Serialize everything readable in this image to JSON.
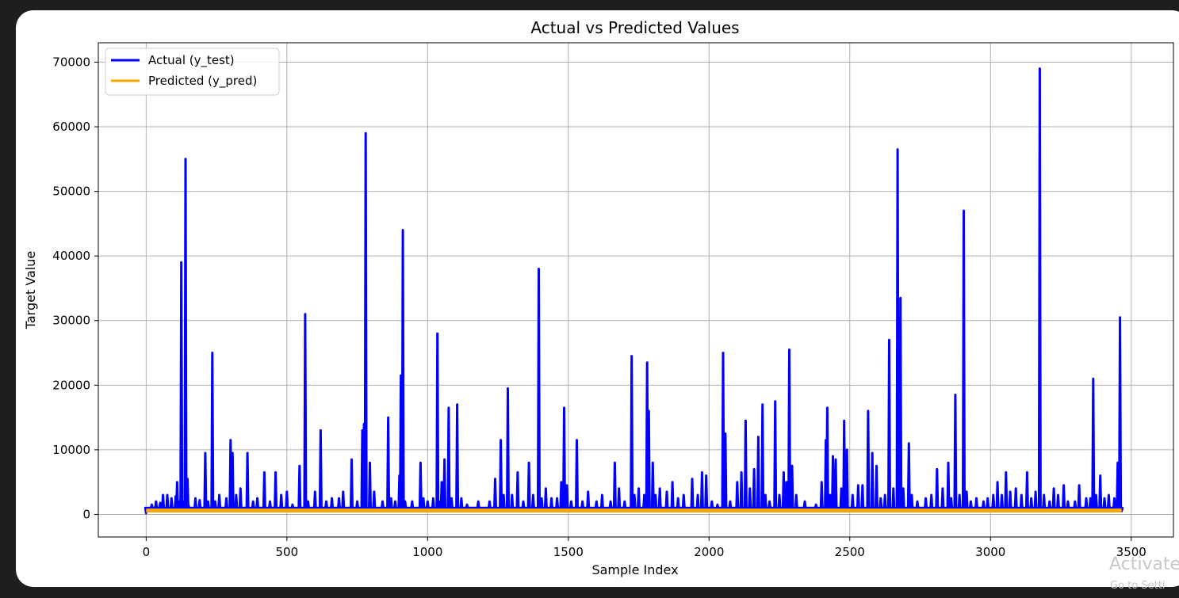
{
  "overlay": {
    "activate_text": "Activate",
    "settings_text": "Go to Setti"
  },
  "chart_data": {
    "type": "line",
    "title": "Actual vs Predicted Values",
    "xlabel": "Sample Index",
    "ylabel": "Target Value",
    "xlim": [
      -170,
      3650
    ],
    "ylim": [
      -3500,
      73000
    ],
    "xticks": [
      0,
      500,
      1000,
      1500,
      2000,
      2500,
      3000,
      3500
    ],
    "yticks": [
      0,
      10000,
      20000,
      30000,
      40000,
      50000,
      60000,
      70000
    ],
    "grid": true,
    "legend_position": "top-left",
    "colors": {
      "actual": "#0000ff",
      "predicted": "#ffa500"
    },
    "series": [
      {
        "name": "Actual (y_test)",
        "color": "#0000ff",
        "baseline": 1000,
        "n": 3466,
        "peaks": [
          [
            0,
            200
          ],
          [
            20,
            1500
          ],
          [
            35,
            2000
          ],
          [
            50,
            1800
          ],
          [
            60,
            3000
          ],
          [
            75,
            3000
          ],
          [
            90,
            2500
          ],
          [
            105,
            2800
          ],
          [
            110,
            5000
          ],
          [
            118,
            2000
          ],
          [
            125,
            39000
          ],
          [
            130,
            2000
          ],
          [
            140,
            55000
          ],
          [
            147,
            5500
          ],
          [
            150,
            1500
          ],
          [
            175,
            2500
          ],
          [
            190,
            2200
          ],
          [
            210,
            9500
          ],
          [
            220,
            2000
          ],
          [
            235,
            25000
          ],
          [
            245,
            2000
          ],
          [
            260,
            3000
          ],
          [
            285,
            2500
          ],
          [
            300,
            11500
          ],
          [
            307,
            9500
          ],
          [
            320,
            3000
          ],
          [
            335,
            4000
          ],
          [
            360,
            9500
          ],
          [
            380,
            2000
          ],
          [
            395,
            2500
          ],
          [
            420,
            6500
          ],
          [
            440,
            2000
          ],
          [
            460,
            6500
          ],
          [
            480,
            3000
          ],
          [
            500,
            3500
          ],
          [
            520,
            1500
          ],
          [
            545,
            7500
          ],
          [
            565,
            31000
          ],
          [
            575,
            2000
          ],
          [
            600,
            3500
          ],
          [
            620,
            13000
          ],
          [
            640,
            2000
          ],
          [
            660,
            2500
          ],
          [
            685,
            2500
          ],
          [
            700,
            3500
          ],
          [
            730,
            8500
          ],
          [
            750,
            2000
          ],
          [
            768,
            13000
          ],
          [
            774,
            14000
          ],
          [
            780,
            59000
          ],
          [
            795,
            8000
          ],
          [
            810,
            3500
          ],
          [
            840,
            2000
          ],
          [
            860,
            15000
          ],
          [
            870,
            2500
          ],
          [
            885,
            2000
          ],
          [
            900,
            6000
          ],
          [
            905,
            21500
          ],
          [
            912,
            44000
          ],
          [
            920,
            2000
          ],
          [
            945,
            2000
          ],
          [
            975,
            8000
          ],
          [
            985,
            2500
          ],
          [
            1000,
            2000
          ],
          [
            1020,
            2500
          ],
          [
            1035,
            28000
          ],
          [
            1040,
            2000
          ],
          [
            1050,
            5000
          ],
          [
            1060,
            8500
          ],
          [
            1075,
            16500
          ],
          [
            1085,
            2500
          ],
          [
            1105,
            17000
          ],
          [
            1120,
            2500
          ],
          [
            1140,
            1500
          ],
          [
            1180,
            2000
          ],
          [
            1220,
            2000
          ],
          [
            1240,
            5500
          ],
          [
            1260,
            11500
          ],
          [
            1270,
            3000
          ],
          [
            1285,
            19500
          ],
          [
            1300,
            3000
          ],
          [
            1320,
            6500
          ],
          [
            1340,
            2000
          ],
          [
            1360,
            8000
          ],
          [
            1375,
            3000
          ],
          [
            1395,
            38000
          ],
          [
            1405,
            2500
          ],
          [
            1420,
            4000
          ],
          [
            1440,
            2500
          ],
          [
            1460,
            2500
          ],
          [
            1475,
            5000
          ],
          [
            1485,
            16500
          ],
          [
            1495,
            4500
          ],
          [
            1510,
            2000
          ],
          [
            1530,
            11500
          ],
          [
            1550,
            2000
          ],
          [
            1570,
            3500
          ],
          [
            1600,
            2000
          ],
          [
            1620,
            3000
          ],
          [
            1650,
            2000
          ],
          [
            1665,
            8000
          ],
          [
            1680,
            4000
          ],
          [
            1700,
            2000
          ],
          [
            1725,
            24500
          ],
          [
            1735,
            3000
          ],
          [
            1750,
            4000
          ],
          [
            1770,
            3000
          ],
          [
            1780,
            23500
          ],
          [
            1786,
            16000
          ],
          [
            1800,
            8000
          ],
          [
            1810,
            3000
          ],
          [
            1825,
            4000
          ],
          [
            1850,
            3500
          ],
          [
            1870,
            5000
          ],
          [
            1890,
            2500
          ],
          [
            1910,
            3000
          ],
          [
            1940,
            5500
          ],
          [
            1960,
            3000
          ],
          [
            1975,
            6500
          ],
          [
            1990,
            6000
          ],
          [
            2010,
            2000
          ],
          [
            2030,
            1500
          ],
          [
            2050,
            25000
          ],
          [
            2058,
            12500
          ],
          [
            2075,
            2000
          ],
          [
            2100,
            5000
          ],
          [
            2115,
            6500
          ],
          [
            2130,
            14500
          ],
          [
            2145,
            4000
          ],
          [
            2160,
            7000
          ],
          [
            2175,
            12000
          ],
          [
            2190,
            17000
          ],
          [
            2200,
            3000
          ],
          [
            2215,
            2000
          ],
          [
            2235,
            17500
          ],
          [
            2250,
            3000
          ],
          [
            2265,
            6500
          ],
          [
            2275,
            5000
          ],
          [
            2285,
            25500
          ],
          [
            2295,
            7500
          ],
          [
            2310,
            3000
          ],
          [
            2340,
            2000
          ],
          [
            2380,
            1500
          ],
          [
            2400,
            5000
          ],
          [
            2415,
            11500
          ],
          [
            2420,
            16500
          ],
          [
            2430,
            3000
          ],
          [
            2440,
            9000
          ],
          [
            2450,
            8500
          ],
          [
            2470,
            4000
          ],
          [
            2480,
            14500
          ],
          [
            2490,
            10000
          ],
          [
            2510,
            3000
          ],
          [
            2530,
            4500
          ],
          [
            2545,
            4500
          ],
          [
            2565,
            16000
          ],
          [
            2580,
            9500
          ],
          [
            2595,
            7500
          ],
          [
            2610,
            2500
          ],
          [
            2625,
            3000
          ],
          [
            2640,
            27000
          ],
          [
            2655,
            4000
          ],
          [
            2670,
            56500
          ],
          [
            2680,
            33500
          ],
          [
            2690,
            4000
          ],
          [
            2710,
            11000
          ],
          [
            2720,
            3000
          ],
          [
            2740,
            2000
          ],
          [
            2770,
            2500
          ],
          [
            2790,
            3000
          ],
          [
            2810,
            7000
          ],
          [
            2830,
            4000
          ],
          [
            2850,
            8000
          ],
          [
            2860,
            2500
          ],
          [
            2875,
            18500
          ],
          [
            2890,
            3000
          ],
          [
            2905,
            47000
          ],
          [
            2915,
            3500
          ],
          [
            2930,
            2000
          ],
          [
            2950,
            2500
          ],
          [
            2975,
            2000
          ],
          [
            2990,
            2500
          ],
          [
            3010,
            3000
          ],
          [
            3025,
            5000
          ],
          [
            3040,
            3000
          ],
          [
            3055,
            6500
          ],
          [
            3070,
            3500
          ],
          [
            3090,
            4000
          ],
          [
            3110,
            3000
          ],
          [
            3130,
            6500
          ],
          [
            3145,
            2500
          ],
          [
            3160,
            3500
          ],
          [
            3175,
            69000
          ],
          [
            3190,
            3000
          ],
          [
            3210,
            2000
          ],
          [
            3225,
            4000
          ],
          [
            3240,
            3000
          ],
          [
            3260,
            4500
          ],
          [
            3275,
            2000
          ],
          [
            3300,
            2000
          ],
          [
            3315,
            4500
          ],
          [
            3340,
            2500
          ],
          [
            3355,
            2500
          ],
          [
            3365,
            21000
          ],
          [
            3375,
            3000
          ],
          [
            3390,
            6000
          ],
          [
            3405,
            2500
          ],
          [
            3420,
            3000
          ],
          [
            3440,
            2500
          ],
          [
            3452,
            8000
          ],
          [
            3460,
            30500
          ],
          [
            3466,
            500
          ]
        ]
      },
      {
        "name": "Predicted (y_pred)",
        "color": "#ffa500",
        "value": 600,
        "n": 3466
      }
    ]
  }
}
